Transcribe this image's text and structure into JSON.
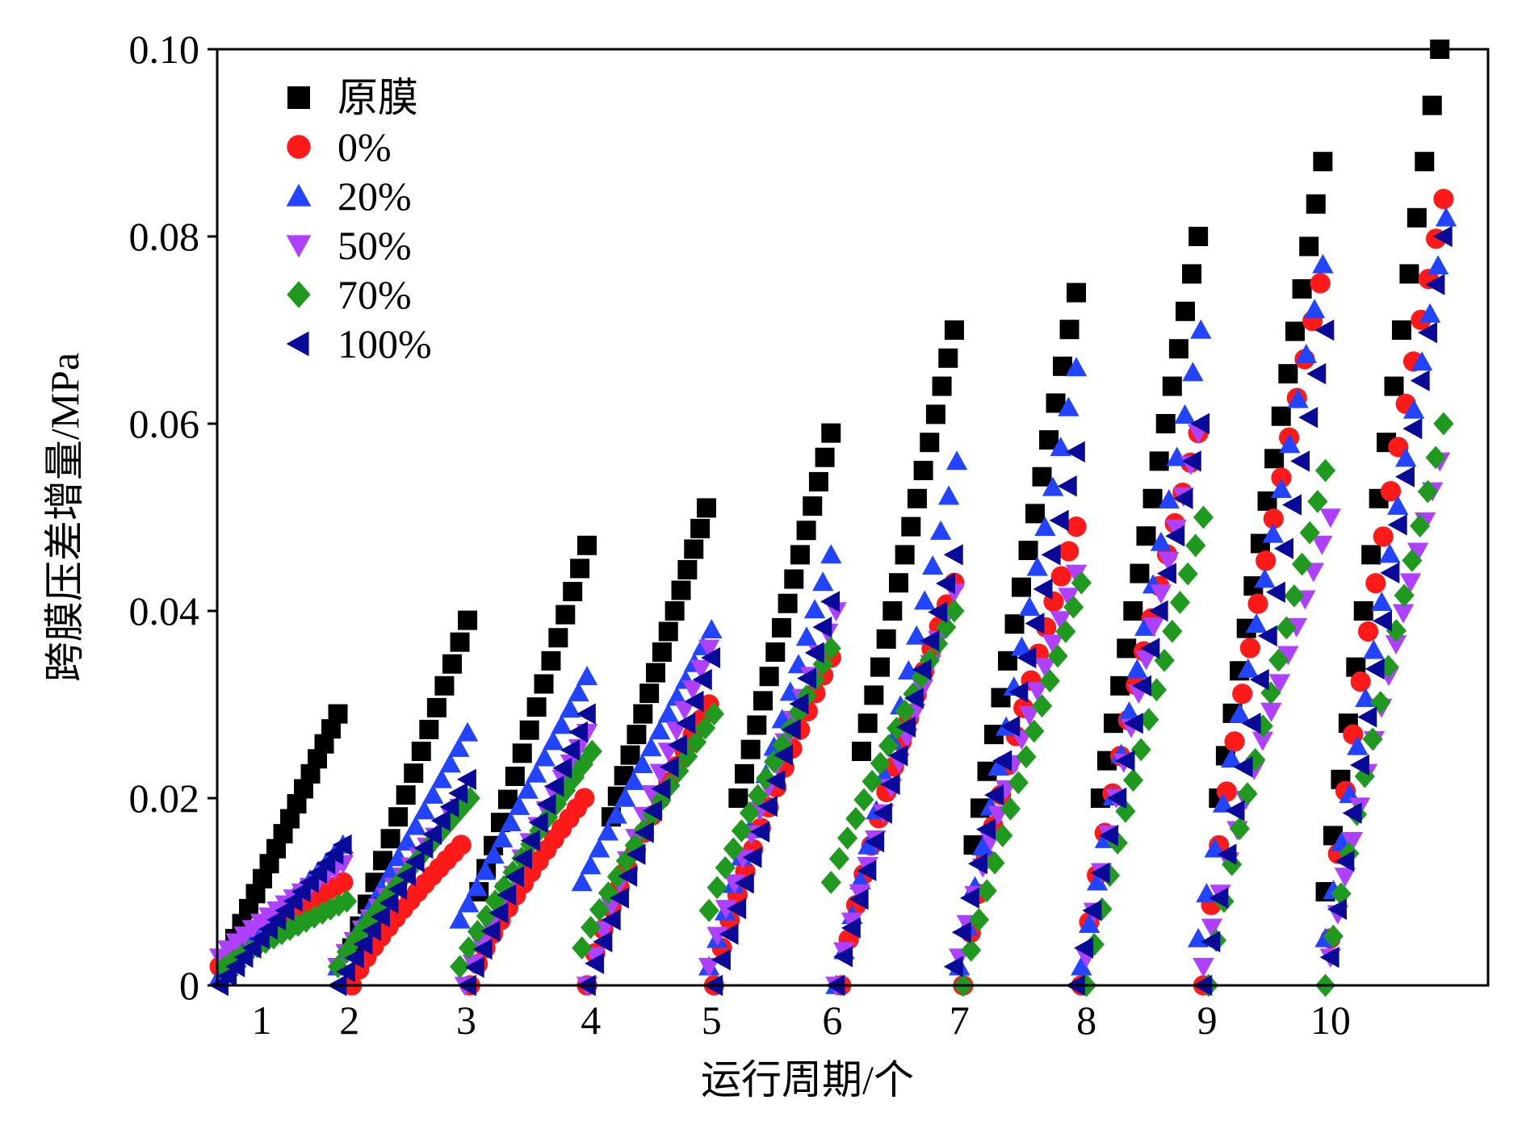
{
  "chart_data": {
    "type": "scatter",
    "title": "",
    "xlabel": "运行周期/个",
    "ylabel": "跨膜压差增量/MPa",
    "xlim": [
      0,
      100
    ],
    "ylim": [
      0,
      0.1
    ],
    "grid": false,
    "legend_position": "top-left",
    "xticks": [
      {
        "label": "1",
        "value": 3.5
      },
      {
        "label": "2",
        "value": 10.4
      },
      {
        "label": "3",
        "value": 19.6
      },
      {
        "label": "4",
        "value": 29.4
      },
      {
        "label": "5",
        "value": 38.9
      },
      {
        "label": "6",
        "value": 48.4
      },
      {
        "label": "7",
        "value": 58.4
      },
      {
        "label": "8",
        "value": 68.4
      },
      {
        "label": "9",
        "value": 77.9
      },
      {
        "label": "10",
        "value": 87.6
      }
    ],
    "yticks": [
      {
        "label": "0",
        "value": 0
      },
      {
        "label": "0.02",
        "value": 0.02
      },
      {
        "label": "0.04",
        "value": 0.04
      },
      {
        "label": "0.06",
        "value": 0.06
      },
      {
        "label": "0.08",
        "value": 0.08
      },
      {
        "label": "0.10",
        "value": 0.1
      }
    ],
    "series_note_segment_format": "[x_start, x_end, y_start, y_end] per operating cycle",
    "series": [
      {
        "name": "原膜",
        "marker": "square",
        "color": "#000000",
        "curve": 1.0,
        "segments": [
          [
            1.4,
            9.5,
            0.005,
            0.029
          ],
          [
            10.6,
            19.7,
            0.004,
            0.039
          ],
          [
            20.6,
            29.1,
            0.01,
            0.047
          ],
          [
            31.0,
            38.5,
            0.018,
            0.051
          ],
          [
            41.0,
            48.3,
            0.02,
            0.059
          ],
          [
            50.7,
            58.0,
            0.025,
            0.07
          ],
          [
            59.5,
            67.6,
            0.015,
            0.074
          ],
          [
            69.5,
            77.2,
            0.02,
            0.08
          ],
          [
            78.8,
            87.0,
            0.02,
            0.088
          ],
          [
            87.2,
            96.2,
            0.01,
            0.1
          ]
        ]
      },
      {
        "name": "0%",
        "marker": "circle",
        "color": "#ff1a1a",
        "curve": 0.8,
        "segments": [
          [
            0.2,
            9.9,
            0.002,
            0.011
          ],
          [
            10.6,
            19.2,
            0.0,
            0.015
          ],
          [
            19.9,
            28.9,
            0.0,
            0.02
          ],
          [
            29.1,
            38.7,
            0.0,
            0.03
          ],
          [
            39.1,
            48.3,
            0.0,
            0.035
          ],
          [
            49.1,
            58.0,
            0.0,
            0.043
          ],
          [
            58.7,
            67.6,
            0.0,
            0.049
          ],
          [
            68.0,
            77.2,
            0.0,
            0.059
          ],
          [
            77.6,
            86.8,
            0.0,
            0.075
          ],
          [
            87.6,
            96.5,
            0.005,
            0.084
          ]
        ]
      },
      {
        "name": "20%",
        "marker": "triangle-up",
        "color": "#2244ff",
        "curve": 1.0,
        "segments": [
          [
            0.2,
            9.9,
            0.001,
            0.015
          ],
          [
            9.5,
            19.7,
            0.002,
            0.027
          ],
          [
            19.1,
            29.1,
            0.007,
            0.033
          ],
          [
            28.7,
            38.9,
            0.011,
            0.038
          ],
          [
            38.7,
            48.3,
            0.002,
            0.046
          ],
          [
            48.7,
            58.2,
            0.0,
            0.056
          ],
          [
            58.4,
            67.6,
            0.002,
            0.066
          ],
          [
            68.0,
            77.4,
            0.002,
            0.07
          ],
          [
            77.2,
            87.0,
            0.005,
            0.077
          ],
          [
            87.2,
            96.7,
            0.005,
            0.082
          ]
        ]
      },
      {
        "name": "50%",
        "marker": "triangle-down",
        "color": "#b040ff",
        "curve": 0.9,
        "segments": [
          [
            0.2,
            9.9,
            0.003,
            0.013
          ],
          [
            9.5,
            19.1,
            0.002,
            0.019
          ],
          [
            19.5,
            29.1,
            0.0,
            0.027
          ],
          [
            29.1,
            38.7,
            0.0,
            0.036
          ],
          [
            38.7,
            48.7,
            0.002,
            0.04
          ],
          [
            48.7,
            58.0,
            0.0,
            0.042
          ],
          [
            58.4,
            67.6,
            0.003,
            0.044
          ],
          [
            68.4,
            77.2,
            0.003,
            0.059
          ],
          [
            77.6,
            87.6,
            0.002,
            0.05
          ],
          [
            87.6,
            96.2,
            0.003,
            0.056
          ]
        ]
      },
      {
        "name": "70%",
        "marker": "diamond",
        "color": "#1f9a1f",
        "curve": 0.9,
        "segments": [
          [
            0.6,
            10.2,
            0.002,
            0.009
          ],
          [
            9.5,
            19.9,
            0.002,
            0.02
          ],
          [
            19.1,
            29.5,
            0.002,
            0.025
          ],
          [
            28.7,
            39.1,
            0.004,
            0.029
          ],
          [
            38.7,
            48.3,
            0.008,
            0.036
          ],
          [
            48.3,
            58.0,
            0.011,
            0.04
          ],
          [
            58.7,
            68.0,
            0.0,
            0.043
          ],
          [
            68.4,
            77.6,
            0.0,
            0.05
          ],
          [
            78.0,
            87.2,
            0.0,
            0.055
          ],
          [
            87.2,
            96.5,
            0.0,
            0.06
          ]
        ]
      },
      {
        "name": "100%",
        "marker": "triangle-left",
        "color": "#0a0a99",
        "curve": 1.0,
        "segments": [
          [
            0.2,
            9.9,
            0.0,
            0.015
          ],
          [
            9.5,
            19.7,
            0.0,
            0.022
          ],
          [
            19.7,
            29.1,
            0.0,
            0.029
          ],
          [
            29.1,
            38.9,
            0.0,
            0.035
          ],
          [
            39.1,
            48.3,
            0.0,
            0.041
          ],
          [
            48.7,
            58.0,
            0.0,
            0.046
          ],
          [
            58.0,
            67.6,
            0.002,
            0.057
          ],
          [
            67.6,
            77.4,
            0.0,
            0.06
          ],
          [
            77.6,
            87.2,
            0.0,
            0.07
          ],
          [
            87.6,
            96.5,
            0.003,
            0.08
          ]
        ]
      }
    ]
  }
}
